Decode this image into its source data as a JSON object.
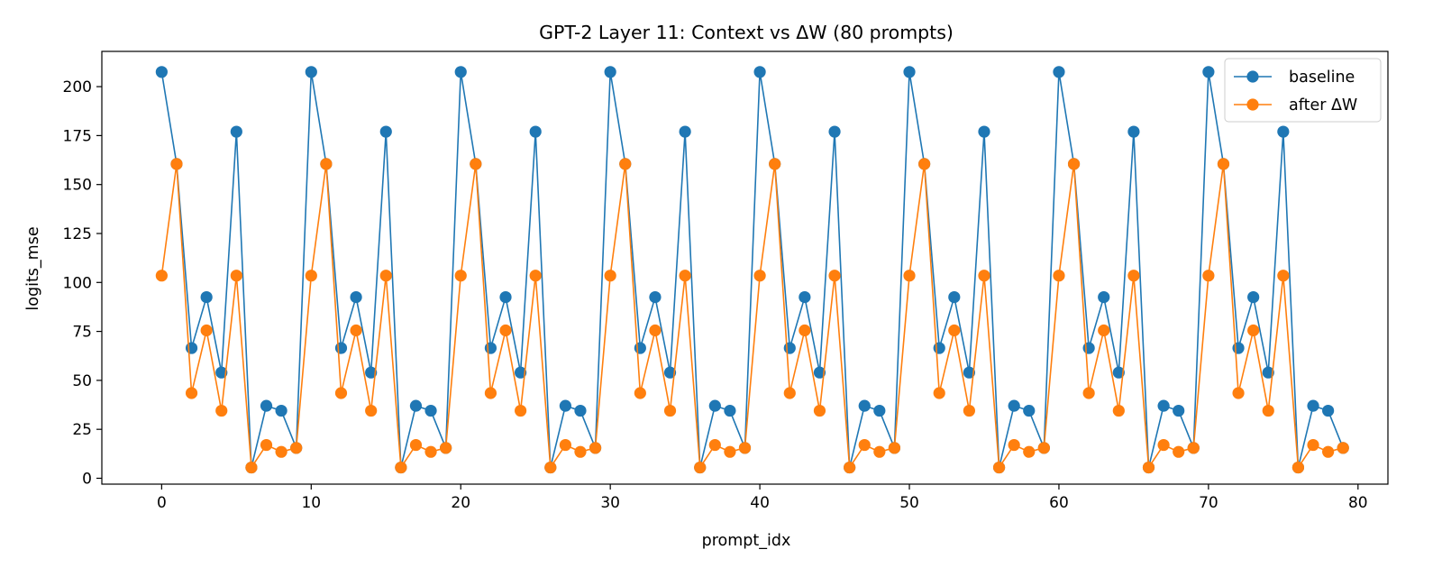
{
  "chart_data": {
    "type": "line",
    "title": "GPT-2 Layer 11: Context vs ΔW (80 prompts)",
    "xlabel": "prompt_idx",
    "ylabel": "logits_mse",
    "xlim": [
      -4,
      82
    ],
    "ylim": [
      -3,
      218
    ],
    "xticks": [
      0,
      10,
      20,
      30,
      40,
      50,
      60,
      70,
      80
    ],
    "yticks": [
      0,
      25,
      50,
      75,
      100,
      125,
      150,
      175,
      200
    ],
    "grid": false,
    "legend_position": "top-right",
    "period": 10,
    "count": 80,
    "series": [
      {
        "name": "baseline",
        "color": "#1f77b4",
        "pattern": [
          207.5,
          160.5,
          66.5,
          92.5,
          54,
          177,
          5.5,
          37,
          34.5,
          15.5
        ]
      },
      {
        "name": "after ΔW",
        "color": "#ff7f0e",
        "pattern": [
          103.5,
          160.5,
          43.5,
          75.5,
          34.5,
          103.5,
          5.5,
          17,
          13.5,
          15.5
        ]
      }
    ]
  }
}
